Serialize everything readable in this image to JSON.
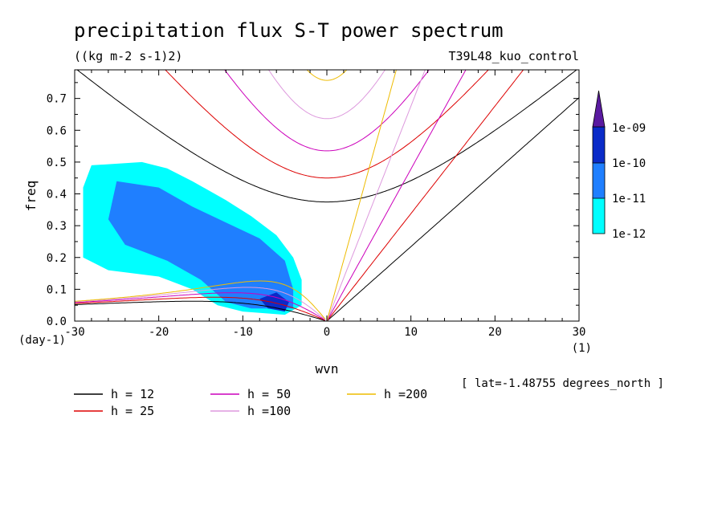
{
  "chart_data": {
    "type": "contour",
    "title": "precipitation flux S-T power spectrum",
    "units": "((kg m-2 s-1)2)",
    "experiment": "T39L48_kuo_control",
    "xlabel": "wvn",
    "xunit": "(1)",
    "ylabel": "freq",
    "yunit": "(day-1)",
    "xlim": [
      -30,
      30
    ],
    "ylim": [
      0,
      0.79
    ],
    "xticks": [
      -30,
      -20,
      -10,
      0,
      10,
      20,
      30
    ],
    "xtick_labels": [
      "-30",
      "-20",
      "-10",
      "0",
      "10",
      "20",
      "30"
    ],
    "yticks": [
      0,
      0.1,
      0.2,
      0.3,
      0.4,
      0.5,
      0.6,
      0.7
    ],
    "ytick_labels": [
      "0.0",
      "0.1",
      "0.2",
      "0.3",
      "0.4",
      "0.5",
      "0.6",
      "0.7"
    ],
    "footnote": "[ lat=-1.48755 degrees_north ]",
    "colorbar": {
      "levels": [
        "1e-12",
        "1e-11",
        "1e-10",
        "1e-09"
      ],
      "colors": [
        "#00ffff",
        "#1f7fff",
        "#0a2bc8",
        "#5a1aa0"
      ]
    },
    "series": [
      {
        "name": "h = 12",
        "h": 12,
        "color": "#000000"
      },
      {
        "name": "h = 25",
        "h": 25,
        "color": "#dd0000"
      },
      {
        "name": "h = 50",
        "h": 50,
        "color": "#cc00bb"
      },
      {
        "name": "h =100",
        "h": 100,
        "color": "#dd99dd"
      },
      {
        "name": "h =200",
        "h": 200,
        "color": "#eebb00"
      }
    ],
    "shaded_regions": [
      {
        "level": "1e-12",
        "points": [
          [
            -28,
            0.49
          ],
          [
            -22,
            0.5
          ],
          [
            -19,
            0.48
          ],
          [
            -16,
            0.44
          ],
          [
            -12,
            0.38
          ],
          [
            -9,
            0.33
          ],
          [
            -6,
            0.27
          ],
          [
            -4,
            0.2
          ],
          [
            -3,
            0.13
          ],
          [
            -3,
            0.05
          ],
          [
            -5,
            0.02
          ],
          [
            -10,
            0.03
          ],
          [
            -13,
            0.05
          ],
          [
            -16,
            0.1
          ],
          [
            -20,
            0.14
          ],
          [
            -26,
            0.16
          ],
          [
            -29,
            0.2
          ],
          [
            -29,
            0.34
          ],
          [
            -29,
            0.42
          ]
        ]
      },
      {
        "level": "1e-11",
        "points": [
          [
            -25,
            0.44
          ],
          [
            -20,
            0.42
          ],
          [
            -16,
            0.36
          ],
          [
            -12,
            0.31
          ],
          [
            -8,
            0.26
          ],
          [
            -5,
            0.19
          ],
          [
            -4,
            0.1
          ],
          [
            -4,
            0.04
          ],
          [
            -9,
            0.04
          ],
          [
            -12,
            0.06
          ],
          [
            -15,
            0.13
          ],
          [
            -19,
            0.19
          ],
          [
            -24,
            0.24
          ],
          [
            -26,
            0.32
          ]
        ]
      },
      {
        "level": "1e-10",
        "points": [
          [
            -8,
            0.07
          ],
          [
            -6,
            0.09
          ],
          [
            -4.5,
            0.06
          ],
          [
            -5,
            0.03
          ],
          [
            -7,
            0.04
          ]
        ]
      }
    ]
  }
}
